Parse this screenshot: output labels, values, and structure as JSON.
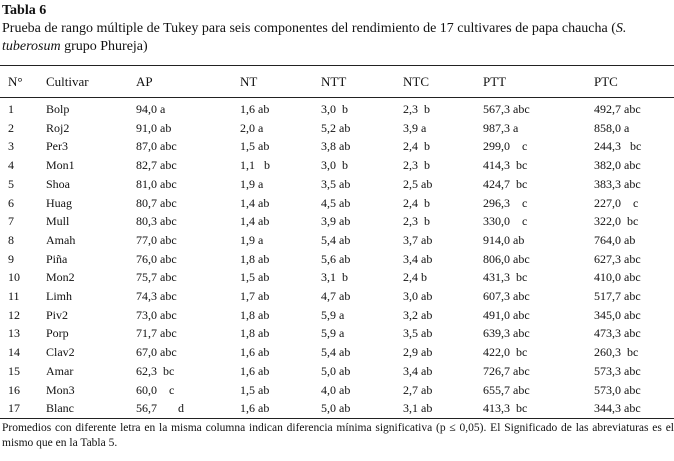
{
  "table": {
    "title": "Tabla 6",
    "caption_pre": "Prueba de rango múltiple de Tukey para seis componentes del rendimiento de 17 cultivares de papa chaucha (",
    "caption_italic": "S. tuberosum",
    "caption_post": " grupo Phureja)",
    "headers": [
      "N°",
      "Cultivar",
      "AP",
      "NT",
      "NTT",
      "NTC",
      "PTT",
      "PTC"
    ],
    "rows": [
      [
        "1",
        "Bolp",
        "94,0 a",
        "1,6 ab",
        "3,0  b",
        "2,3  b",
        "567,3 abc",
        "492,7 abc"
      ],
      [
        "2",
        "Roj2",
        "91,0 ab",
        "2,0 a",
        "5,2 ab",
        "3,9 a",
        "987,3 a",
        "858,0 a"
      ],
      [
        "3",
        "Per3",
        "87,0 abc",
        "1,5 ab",
        "3,8 ab",
        "2,4  b",
        "299,0    c",
        "244,3   bc"
      ],
      [
        "4",
        "Mon1",
        "82,7 abc",
        "1,1   b",
        "3,0  b",
        "2,3  b",
        "414,3  bc",
        "382,0 abc"
      ],
      [
        "5",
        "Shoa",
        "81,0 abc",
        "1,9 a",
        "3,5 ab",
        "2,5 ab",
        "424,7  bc",
        "383,3 abc"
      ],
      [
        "6",
        "Huag",
        "80,7 abc",
        "1,4 ab",
        "4,5 ab",
        "2,4  b",
        "296,3    c",
        "227,0    c"
      ],
      [
        "7",
        "Mull",
        "80,3 abc",
        "1,4 ab",
        "3,9 ab",
        "2,3  b",
        "330,0    c",
        "322,0  bc"
      ],
      [
        "8",
        "Amah",
        "77,0 abc",
        "1,9 a",
        "5,4 ab",
        "3,7 ab",
        "914,0 ab",
        "764,0 ab"
      ],
      [
        "9",
        "Piña",
        "76,0 abc",
        "1,8 ab",
        "5,6 ab",
        "3,4 ab",
        "806,0 abc",
        "627,3 abc"
      ],
      [
        "10",
        "Mon2",
        "75,7 abc",
        "1,5 ab",
        "3,1  b",
        "2,4 b",
        "431,3  bc",
        "410,0 abc"
      ],
      [
        "11",
        "Limh",
        "74,3 abc",
        "1,7 ab",
        "4,7 ab",
        "3,0 ab",
        "607,3 abc",
        "517,7 abc"
      ],
      [
        "12",
        "Piv2",
        "73,0 abc",
        "1,8 ab",
        "5,9 a",
        "3,2 ab",
        "491,0 abc",
        "345,0 abc"
      ],
      [
        "13",
        "Porp",
        "71,7 abc",
        "1,8 ab",
        "5,9 a",
        "3,5 ab",
        "639,3 abc",
        "473,3 abc"
      ],
      [
        "14",
        "Clav2",
        "67,0 abc",
        "1,6 ab",
        "5,4 ab",
        "2,9 ab",
        "422,0  bc",
        "260,3  bc"
      ],
      [
        "15",
        "Amar",
        "62,3  bc",
        "1,6 ab",
        "5,0 ab",
        "3,4 ab",
        "726,7 abc",
        "573,3 abc"
      ],
      [
        "16",
        "Mon3",
        "60,0    c",
        "1,5 ab",
        "4,0 ab",
        "2,7 ab",
        "655,7 abc",
        "573,0 abc"
      ],
      [
        "17",
        "Blanc",
        "56,7       d",
        "1,6 ab",
        "5,0 ab",
        "3,1 ab",
        "413,3  bc",
        "344,3 abc"
      ]
    ],
    "footnote": "Promedios con diferente letra en la misma columna indican diferencia mínima significativa (p ≤ 0,05). El Significado de las abreviaturas es el mismo que en la Tabla 5."
  }
}
